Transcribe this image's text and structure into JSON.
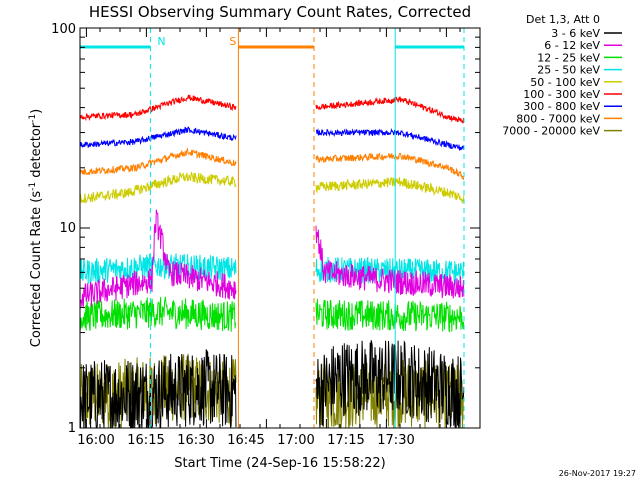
{
  "chart_data": {
    "type": "line",
    "title": "HESSI Observing Summary Count Rates, Corrected",
    "xlabel": "Start Time (24-Sep-16 15:58:22)",
    "ylabel": "Corrected Count Rate (s⁻¹ detector⁻¹)",
    "ylabel_main": "Corrected Count Rate (s",
    "ylabel_sup1": "-1",
    "ylabel_mid": " detector",
    "ylabel_sup2": "-1",
    "ylabel_end": ")",
    "y_scale": "log",
    "ylim": [
      1,
      100
    ],
    "x_tick_labels": [
      "16:00",
      "16:15",
      "16:30",
      "16:45",
      "17:00",
      "17:15",
      "17:30"
    ],
    "y_tick_labels": [
      "1",
      "10",
      "100"
    ],
    "xlim_minutes": [
      0,
      100
    ],
    "legend_header": "Det 1,3, Att 0",
    "timestamp": "26-Nov-2017 19:27",
    "gaps": [
      [
        39.6,
        58.5
      ]
    ],
    "flags": [
      {
        "label": "N",
        "color": "#00e5e5",
        "start": 0.0,
        "end": 17.6
      },
      {
        "label": "S",
        "color": "#ff7f00",
        "start": 39.6,
        "end": 58.5
      },
      {
        "label": "",
        "color": "#00e5e5",
        "start": 78.8,
        "end": 96.0
      }
    ],
    "series": [
      {
        "name": "3 - 6 keV",
        "color": "#000000",
        "left": [
          [
            0,
            1.4
          ],
          [
            20,
            1.5
          ],
          [
            30,
            1.6
          ],
          [
            39,
            1.5
          ]
        ],
        "right": [
          [
            59,
            1.5
          ],
          [
            65,
            1.8
          ],
          [
            80,
            1.8
          ],
          [
            96,
            1.5
          ]
        ],
        "noise": 0.45
      },
      {
        "name": "6 - 12 keV",
        "color": "#e000e0",
        "left": [
          [
            0,
            4.5
          ],
          [
            18,
            5.5
          ],
          [
            19,
            11
          ],
          [
            22,
            6
          ],
          [
            30,
            5.5
          ],
          [
            39,
            5.0
          ]
        ],
        "right": [
          [
            59,
            10
          ],
          [
            61,
            6
          ],
          [
            75,
            5.5
          ],
          [
            96,
            5.0
          ]
        ],
        "noise": 0.15
      },
      {
        "name": "12 - 25 keV",
        "color": "#00e000",
        "left": [
          [
            0,
            3.6
          ],
          [
            20,
            3.8
          ],
          [
            39,
            3.6
          ]
        ],
        "right": [
          [
            59,
            3.7
          ],
          [
            96,
            3.6
          ]
        ],
        "noise": 0.18
      },
      {
        "name": "25 - 50 keV",
        "color": "#00e5e5",
        "left": [
          [
            0,
            6.0
          ],
          [
            20,
            6.5
          ],
          [
            39,
            6.2
          ]
        ],
        "right": [
          [
            59,
            6.2
          ],
          [
            96,
            6.0
          ]
        ],
        "noise": 0.15
      },
      {
        "name": "50 - 100 keV",
        "color": "#cccc00",
        "left": [
          [
            0,
            14
          ],
          [
            12,
            15
          ],
          [
            26,
            18
          ],
          [
            39,
            17
          ]
        ],
        "right": [
          [
            59,
            16
          ],
          [
            80,
            17
          ],
          [
            92,
            15
          ],
          [
            96,
            14
          ]
        ],
        "noise": 0.06
      },
      {
        "name": "100 - 300 keV",
        "color": "#ff0000",
        "left": [
          [
            0,
            36
          ],
          [
            14,
            37
          ],
          [
            27,
            45
          ],
          [
            39,
            40
          ]
        ],
        "right": [
          [
            59,
            40
          ],
          [
            80,
            44
          ],
          [
            92,
            36
          ],
          [
            96,
            34
          ]
        ],
        "noise": 0.035
      },
      {
        "name": "300 - 800 keV",
        "color": "#0000ff",
        "left": [
          [
            0,
            26
          ],
          [
            14,
            27
          ],
          [
            27,
            31
          ],
          [
            39,
            28
          ]
        ],
        "right": [
          [
            59,
            30
          ],
          [
            80,
            30
          ],
          [
            92,
            26
          ],
          [
            96,
            25
          ]
        ],
        "noise": 0.035
      },
      {
        "name": "800 - 7000 keV",
        "color": "#ff7f00",
        "left": [
          [
            0,
            19
          ],
          [
            14,
            20
          ],
          [
            27,
            24
          ],
          [
            39,
            21
          ]
        ],
        "right": [
          [
            59,
            22
          ],
          [
            80,
            23
          ],
          [
            92,
            20
          ],
          [
            96,
            18
          ]
        ],
        "noise": 0.04
      },
      {
        "name": "7000 - 20000 keV",
        "color": "#808000",
        "left": [
          [
            0,
            1.4
          ],
          [
            25,
            1.6
          ],
          [
            39,
            1.5
          ]
        ],
        "right": [
          [
            59,
            1.4
          ],
          [
            80,
            1.5
          ],
          [
            96,
            1.4
          ]
        ],
        "noise": 0.4
      }
    ]
  }
}
